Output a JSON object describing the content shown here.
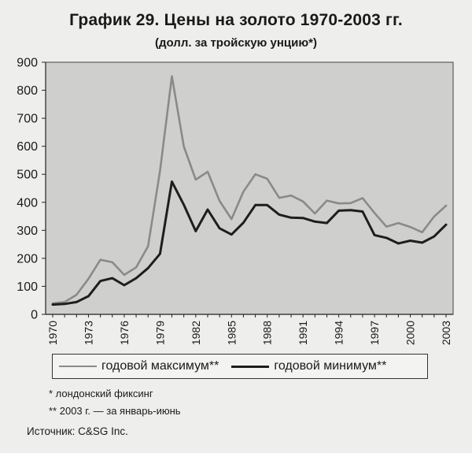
{
  "title": "График 29. Цены на золото 1970-2003 гг.",
  "subtitle": "(долл. за тройскую унцию*)",
  "footnotes": [
    "* лондонский фиксинг",
    "** 2003 г. — за январь-июнь"
  ],
  "source": "Источник: C&SG Inc.",
  "colors": {
    "plot_background": "#cfcfcd",
    "max_line": "#8a8a8a",
    "min_line": "#1e1e1e",
    "axis": "#222222"
  },
  "chart_data": {
    "type": "line",
    "title": "График 29. Цены на золото 1970-2003 гг.",
    "subtitle": "(долл. за тройскую унцию*)",
    "x": [
      1970,
      1971,
      1972,
      1973,
      1974,
      1975,
      1976,
      1977,
      1978,
      1979,
      1980,
      1981,
      1982,
      1983,
      1984,
      1985,
      1986,
      1987,
      1988,
      1989,
      1990,
      1991,
      1992,
      1993,
      1994,
      1995,
      1996,
      1997,
      1998,
      1999,
      2000,
      2001,
      2002,
      2003
    ],
    "x_tick_labels": [
      "1970",
      "1973",
      "1976",
      "1979",
      "1982",
      "1985",
      "1988",
      "1991",
      "1994",
      "1997",
      "2000",
      "2003"
    ],
    "y_ticks": [
      0,
      100,
      200,
      300,
      400,
      500,
      600,
      700,
      800,
      900
    ],
    "ylim": [
      0,
      900
    ],
    "grid": false,
    "legend_position": "bottom",
    "series": [
      {
        "name": "годовой максимум**",
        "values": [
          39,
          44,
          70,
          127,
          195,
          186,
          141,
          168,
          243,
          512,
          850,
          599,
          481,
          509,
          405,
          340,
          438,
          500,
          484,
          416,
          424,
          403,
          360,
          406,
          396,
          397,
          415,
          362,
          313,
          326,
          312,
          293,
          349,
          388
        ]
      },
      {
        "name": "годовой минимум**",
        "values": [
          35,
          37,
          44,
          65,
          119,
          129,
          104,
          129,
          165,
          216,
          474,
          391,
          297,
          374,
          307,
          285,
          327,
          390,
          390,
          356,
          345,
          344,
          331,
          326,
          370,
          372,
          367,
          283,
          273,
          253,
          263,
          256,
          278,
          320
        ]
      }
    ]
  }
}
